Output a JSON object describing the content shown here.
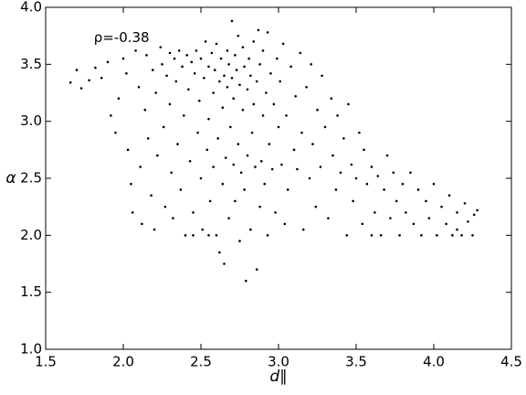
{
  "chart_data": {
    "type": "scatter",
    "color": "#000000",
    "xlabel": "d∥",
    "ylabel": "α",
    "annotation": {
      "text": "ρ=-0.38",
      "x": 1.81,
      "y": 3.73
    },
    "xlim": [
      1.5,
      4.5
    ],
    "xticks": [
      1.5,
      {
        "value": 2,
        "label": "2.0"
      },
      2.5,
      {
        "value": 3,
        "label": "3.0"
      },
      3.5,
      {
        "value": 4,
        "label": "4.0"
      },
      4.5
    ],
    "ylim": [
      1.0,
      4.0
    ],
    "yticks": [
      {
        "value": 1,
        "label": "1.0"
      },
      1.5,
      {
        "value": 2,
        "label": "2.0"
      },
      2.5,
      {
        "value": 3,
        "label": "3.0"
      },
      3.5,
      {
        "value": 4,
        "label": "4.0"
      }
    ],
    "x": [
      1.66,
      1.7,
      1.73,
      1.78,
      1.82,
      1.86,
      1.9,
      1.92,
      1.95,
      1.97,
      2.0,
      2.02,
      2.03,
      2.05,
      2.06,
      2.08,
      2.1,
      2.11,
      2.12,
      2.14,
      2.15,
      2.16,
      2.18,
      2.19,
      2.2,
      2.21,
      2.22,
      2.24,
      2.25,
      2.26,
      2.27,
      2.28,
      2.3,
      2.3,
      2.31,
      2.32,
      2.33,
      2.34,
      2.35,
      2.36,
      2.37,
      2.38,
      2.39,
      2.4,
      2.41,
      2.42,
      2.43,
      2.44,
      2.45,
      2.46,
      2.47,
      2.48,
      2.49,
      2.5,
      2.5,
      2.51,
      2.52,
      2.53,
      2.54,
      2.55,
      2.55,
      2.56,
      2.57,
      2.58,
      2.58,
      2.59,
      2.6,
      2.6,
      2.61,
      2.62,
      2.62,
      2.63,
      2.64,
      2.64,
      2.65,
      2.65,
      2.66,
      2.67,
      2.67,
      2.68,
      2.68,
      2.69,
      2.7,
      2.7,
      2.71,
      2.71,
      2.72,
      2.72,
      2.73,
      2.74,
      2.74,
      2.75,
      2.75,
      2.76,
      2.77,
      2.77,
      2.78,
      2.78,
      2.79,
      2.8,
      2.8,
      2.81,
      2.82,
      2.82,
      2.83,
      2.84,
      2.84,
      2.85,
      2.86,
      2.86,
      2.87,
      2.88,
      2.88,
      2.89,
      2.9,
      2.9,
      2.91,
      2.92,
      2.93,
      2.93,
      2.94,
      2.95,
      2.96,
      2.97,
      2.98,
      2.99,
      3.0,
      3.01,
      3.02,
      3.03,
      3.04,
      3.05,
      3.06,
      3.08,
      3.1,
      3.11,
      3.12,
      3.14,
      3.15,
      3.16,
      3.18,
      3.2,
      3.21,
      3.22,
      3.24,
      3.25,
      3.27,
      3.28,
      3.3,
      3.32,
      3.34,
      3.35,
      3.37,
      3.38,
      3.4,
      3.42,
      3.44,
      3.45,
      3.47,
      3.48,
      3.5,
      3.52,
      3.54,
      3.55,
      3.57,
      3.6,
      3.62,
      3.64,
      3.66,
      3.68,
      3.7,
      3.72,
      3.74,
      3.76,
      3.78,
      3.8,
      3.82,
      3.85,
      3.87,
      3.9,
      3.92,
      3.95,
      3.97,
      4.0,
      4.02,
      4.05,
      4.08,
      4.1,
      4.12,
      4.15,
      4.18,
      4.2,
      4.22,
      4.25,
      4.28,
      4.26,
      4.15,
      3.6,
      2.45,
      2.55
    ],
    "values": [
      3.34,
      3.45,
      3.29,
      3.36,
      3.47,
      3.38,
      3.52,
      3.05,
      2.9,
      3.2,
      3.55,
      3.42,
      2.75,
      2.45,
      2.2,
      3.62,
      3.3,
      2.6,
      2.1,
      3.1,
      3.58,
      2.85,
      2.35,
      3.45,
      2.05,
      3.25,
      2.7,
      3.65,
      3.5,
      2.95,
      2.25,
      3.4,
      3.6,
      3.15,
      2.55,
      2.15,
      3.55,
      3.35,
      2.8,
      3.62,
      2.4,
      3.48,
      3.05,
      2.0,
      3.58,
      3.28,
      2.65,
      3.52,
      2.2,
      3.42,
      3.62,
      2.9,
      3.18,
      3.55,
      2.5,
      2.05,
      3.38,
      3.7,
      2.75,
      3.48,
      3.02,
      2.3,
      3.6,
      3.25,
      2.6,
      3.45,
      2.0,
      3.68,
      2.85,
      3.35,
      1.85,
      3.55,
      2.45,
      3.12,
      3.4,
      1.75,
      2.68,
      3.62,
      3.3,
      2.15,
      3.5,
      2.95,
      3.88,
      3.38,
      2.62,
      3.2,
      3.58,
      2.3,
      3.45,
      2.8,
      3.75,
      3.32,
      1.95,
      2.55,
      3.65,
      3.1,
      2.4,
      3.48,
      1.6,
      3.28,
      2.7,
      3.55,
      2.05,
      3.4,
      2.9,
      3.7,
      3.15,
      2.6,
      1.7,
      3.35,
      3.8,
      2.25,
      3.5,
      2.65,
      3.05,
      3.62,
      2.45,
      3.25,
      2.0,
      3.78,
      2.8,
      3.42,
      2.58,
      3.15,
      2.2,
      3.55,
      2.95,
      3.35,
      2.62,
      3.68,
      2.1,
      3.05,
      2.4,
      3.48,
      2.75,
      3.22,
      2.58,
      3.6,
      2.9,
      2.05,
      3.3,
      2.5,
      3.5,
      2.8,
      2.25,
      3.1,
      2.6,
      3.4,
      2.95,
      2.15,
      3.2,
      2.7,
      2.4,
      3.05,
      2.55,
      2.85,
      2.0,
      3.15,
      2.62,
      2.3,
      2.5,
      2.9,
      2.1,
      2.75,
      2.45,
      2.6,
      2.2,
      2.52,
      2.0,
      2.4,
      2.7,
      2.15,
      2.55,
      2.3,
      2.0,
      2.45,
      2.2,
      2.55,
      2.1,
      2.4,
      2.0,
      2.3,
      2.15,
      2.45,
      2.0,
      2.25,
      2.1,
      2.35,
      2.0,
      2.2,
      2.0,
      2.28,
      2.12,
      2.0,
      2.22,
      2.18,
      2.05,
      2.0,
      2.0,
      2.0
    ]
  }
}
